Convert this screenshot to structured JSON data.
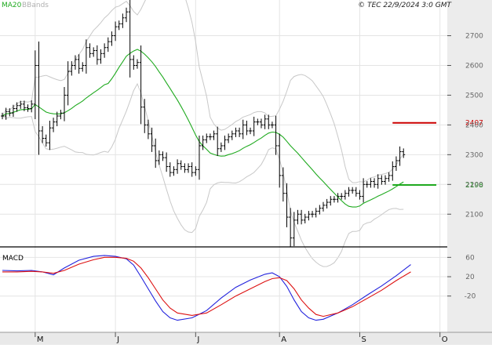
{
  "header": {
    "legend_ma": "MA20",
    "legend_bb": "BBands",
    "copyright": "© TEC 22/9/2024 3:0 GMT"
  },
  "colors": {
    "background": "#ffffff",
    "right_panel": "#ececec",
    "bottom_axis": "#e9e9e9",
    "grid": "#e4e4e4",
    "price_bars": "#000000",
    "ma": "#1faa1f",
    "bbands": "#c8c8c8",
    "macd": "#2222dd",
    "signal": "#dd1111",
    "resistance": "#cc0000",
    "support": "#1faa1f",
    "legend_ma_text": "#1faa1f",
    "legend_bb_text": "#b0b0b0"
  },
  "chart_data": [
    {
      "type": "ohlc",
      "ylim": [
        1990,
        2820
      ],
      "yticks": [
        2100,
        2200,
        2300,
        2400,
        2500,
        2600,
        2700
      ],
      "x_month_labels": [
        "M",
        "J",
        "J",
        "A",
        "S",
        "O"
      ],
      "x_month_index": [
        9,
        31,
        53,
        76,
        98,
        120
      ],
      "index_range": [
        0,
        122
      ],
      "levels": [
        {
          "name": "resistance",
          "value": 2407,
          "label": "2407",
          "from_index": 107,
          "to_index": 119
        },
        {
          "name": "support",
          "value": 2198,
          "label": "2198",
          "from_index": 107,
          "to_index": 119
        }
      ],
      "close": [
        2430,
        2445,
        2440,
        2455,
        2465,
        2470,
        2458,
        2455,
        2470,
        2600,
        2380,
        2355,
        2340,
        2390,
        2410,
        2430,
        2440,
        2500,
        2580,
        2600,
        2620,
        2590,
        2600,
        2660,
        2640,
        2650,
        2620,
        2640,
        2660,
        2680,
        2700,
        2730,
        2740,
        2760,
        2780,
        2620,
        2600,
        2610,
        2460,
        2400,
        2370,
        2330,
        2280,
        2300,
        2290,
        2260,
        2240,
        2250,
        2270,
        2260,
        2250,
        2260,
        2240,
        2250,
        2330,
        2350,
        2360,
        2360,
        2370,
        2320,
        2330,
        2350,
        2360,
        2370,
        2380,
        2370,
        2400,
        2380,
        2380,
        2410,
        2410,
        2400,
        2420,
        2400,
        2400,
        2330,
        2230,
        2170,
        2090,
        2020,
        2080,
        2100,
        2080,
        2090,
        2100,
        2100,
        2110,
        2120,
        2130,
        2140,
        2150,
        2150,
        2160,
        2160,
        2170,
        2180,
        2180,
        2170,
        2160,
        2200,
        2200,
        2210,
        2200,
        2220,
        2210,
        2220,
        2230,
        2260,
        2280,
        2310,
        2300
      ]
    },
    {
      "type": "line",
      "title": "MACD",
      "ylim": [
        -95,
        80
      ],
      "yticks": [
        60,
        20,
        -20
      ],
      "ytick_labels": [
        "60",
        "20",
        "-20"
      ],
      "index_range": [
        0,
        122
      ],
      "series": [
        {
          "name": "MACD",
          "color": "#2222dd",
          "x": [
            0,
            4,
            8,
            11,
            14,
            17,
            21,
            25,
            28,
            31,
            34,
            36,
            38,
            40,
            42,
            44,
            46,
            48,
            52,
            56,
            60,
            64,
            68,
            72,
            74,
            76,
            78,
            80,
            82,
            84,
            86,
            88,
            92,
            96,
            100,
            104,
            108,
            112
          ],
          "y": [
            33,
            32,
            33,
            30,
            24,
            38,
            54,
            62,
            64,
            62,
            57,
            44,
            20,
            -5,
            -30,
            -52,
            -65,
            -70,
            -65,
            -50,
            -24,
            -2,
            13,
            25,
            28,
            20,
            0,
            -28,
            -52,
            -65,
            -70,
            -68,
            -55,
            -38,
            -18,
            1,
            22,
            45
          ]
        },
        {
          "name": "Signal",
          "color": "#dd1111",
          "x": [
            0,
            4,
            8,
            11,
            14,
            17,
            21,
            25,
            28,
            31,
            34,
            36,
            38,
            40,
            42,
            44,
            46,
            48,
            52,
            56,
            60,
            64,
            68,
            72,
            74,
            76,
            78,
            80,
            82,
            84,
            86,
            88,
            92,
            96,
            100,
            104,
            108,
            112
          ],
          "y": [
            30,
            30,
            31,
            30,
            27,
            33,
            46,
            55,
            60,
            60,
            58,
            52,
            38,
            18,
            -5,
            -28,
            -45,
            -55,
            -60,
            -55,
            -38,
            -20,
            -5,
            10,
            16,
            18,
            12,
            -5,
            -28,
            -45,
            -58,
            -62,
            -55,
            -42,
            -25,
            -8,
            12,
            30
          ]
        }
      ]
    }
  ]
}
